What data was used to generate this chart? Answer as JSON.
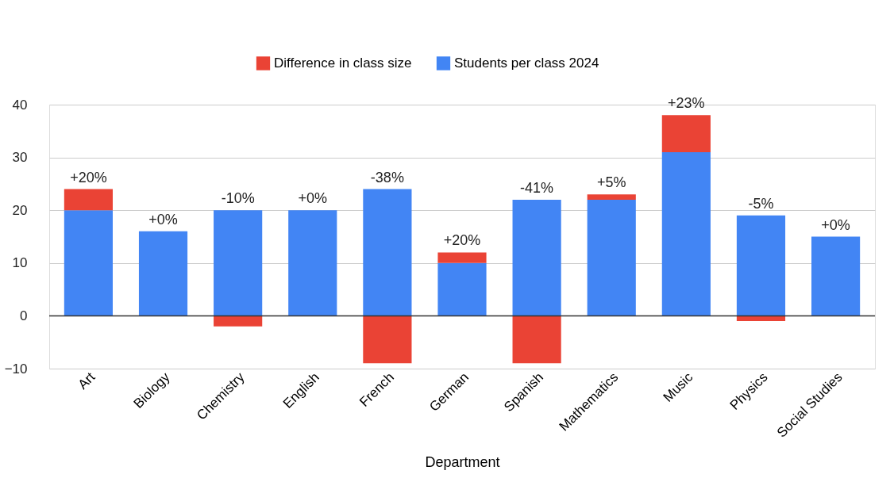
{
  "chart_data": {
    "type": "bar",
    "stacked": true,
    "xlabel": "Department",
    "categories": [
      "Art",
      "Biology",
      "Chemistry",
      "English",
      "French",
      "German",
      "Spanish",
      "Mathematics",
      "Music",
      "Physics",
      "Social Studies"
    ],
    "series": [
      {
        "name": "Students per class 2024",
        "color": "#4285f4",
        "values": [
          20,
          16,
          20,
          20,
          24,
          10,
          22,
          22,
          31,
          19,
          15
        ]
      },
      {
        "name": "Difference in class size",
        "color": "#ea4335",
        "values": [
          4,
          0,
          -2,
          0,
          -9,
          2,
          -9,
          1,
          7,
          -1,
          0
        ]
      }
    ],
    "annotations": [
      {
        "text": "+20%",
        "x": "Art",
        "y": 24
      },
      {
        "text": "+0%",
        "x": "Biology",
        "y": 16
      },
      {
        "text": "-10%",
        "x": "Chemistry",
        "y": 20
      },
      {
        "text": "+0%",
        "x": "English",
        "y": 20
      },
      {
        "text": "-38%",
        "x": "French",
        "y": 24
      },
      {
        "text": "+20%",
        "x": "German",
        "y": 12
      },
      {
        "text": "-41%",
        "x": "Spanish",
        "y": 22
      },
      {
        "text": "+5%",
        "x": "Mathematics",
        "y": 23
      },
      {
        "text": "+23%",
        "x": "Music",
        "y": 38
      },
      {
        "text": "-5%",
        "x": "Physics",
        "y": 19
      },
      {
        "text": "+0%",
        "x": "Social Studies",
        "y": 15
      }
    ],
    "ylim": [
      -10,
      40
    ],
    "yticks": [
      -10,
      0,
      10,
      20,
      30,
      40
    ],
    "grid": "y",
    "legend": "top",
    "ref_lines": [
      {
        "axis": "y",
        "value": 0,
        "color": "#333333"
      }
    ]
  }
}
